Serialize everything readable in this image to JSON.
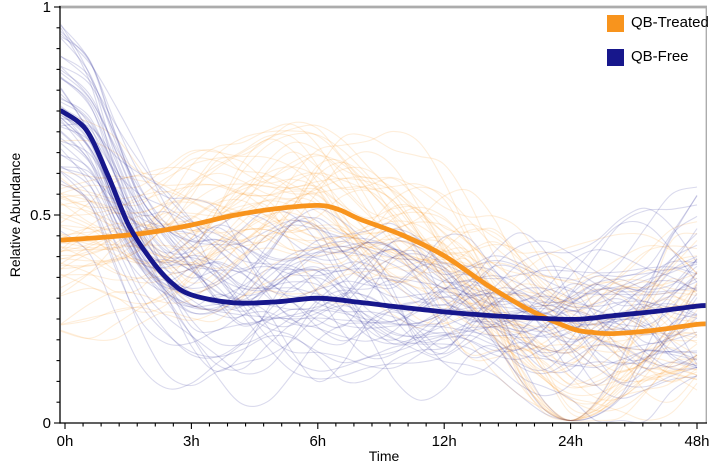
{
  "colors": {
    "qb_treated": "#F8941D",
    "qb_free": "#17178C",
    "axis": "#000000",
    "border": "#ACACAC",
    "background": "#FFFFFF",
    "text": "#000000"
  },
  "legend": {
    "items": [
      {
        "label": "QB-Treated",
        "color": "#F8941D"
      },
      {
        "label": "QB-Free",
        "color": "#17178C"
      }
    ]
  },
  "axes": {
    "x_label": "Time",
    "y_label": "Relative Abundance",
    "x_tick_labels": [
      "0h",
      "3h",
      "6h",
      "12h",
      "24h",
      "48h"
    ],
    "y_tick_labels": [
      "0",
      "0.5",
      "1"
    ],
    "y_tick_values": [
      0,
      0.5,
      1
    ],
    "y_minor_step": 0.05,
    "x_minor_per_major": 6,
    "ylim": [
      0,
      1
    ]
  },
  "chart_data": {
    "type": "line",
    "title": "",
    "xlabel": "Time",
    "ylabel": "Relative Abundance",
    "x_categories": [
      "0h",
      "3h",
      "6h",
      "12h",
      "24h",
      "48h"
    ],
    "x_tick_hours": [
      0,
      3,
      6,
      12,
      24,
      48
    ],
    "x_scale_note": "tick marks for 0,3,6,12,24,48 hours are equally spaced",
    "ylim": [
      0,
      1
    ],
    "series": [
      {
        "name": "QB-Treated",
        "role": "mean-line",
        "color": "#F8941D",
        "x_hours": [
          0,
          1,
          2,
          3,
          4,
          5,
          6,
          7,
          8,
          10,
          12,
          16,
          20,
          24,
          28,
          32,
          40,
          48
        ],
        "values": [
          0.44,
          0.447,
          0.458,
          0.476,
          0.499,
          0.515,
          0.523,
          0.513,
          0.49,
          0.452,
          0.402,
          0.333,
          0.273,
          0.228,
          0.218,
          0.215,
          0.223,
          0.237
        ]
      },
      {
        "name": "QB-Free",
        "role": "mean-line",
        "color": "#17178C",
        "x_hours": [
          0,
          0.5,
          1,
          1.5,
          2,
          2.5,
          3,
          4,
          5,
          6,
          8,
          10,
          12,
          16,
          20,
          24,
          28,
          32,
          40,
          48
        ],
        "values": [
          0.75,
          0.705,
          0.6,
          0.478,
          0.398,
          0.34,
          0.308,
          0.289,
          0.291,
          0.3,
          0.29,
          0.278,
          0.267,
          0.259,
          0.253,
          0.249,
          0.252,
          0.258,
          0.268,
          0.281
        ]
      }
    ],
    "individual_traces": {
      "description": "thin translucent per-sample traces behind each mean line; a bundle of QB-Treated traces (and a few QB-Free) pinches to 0 exactly at 24h",
      "per_group_count": 52,
      "opacity": 0.16,
      "dip_to_zero_at_hours": 24
    }
  }
}
